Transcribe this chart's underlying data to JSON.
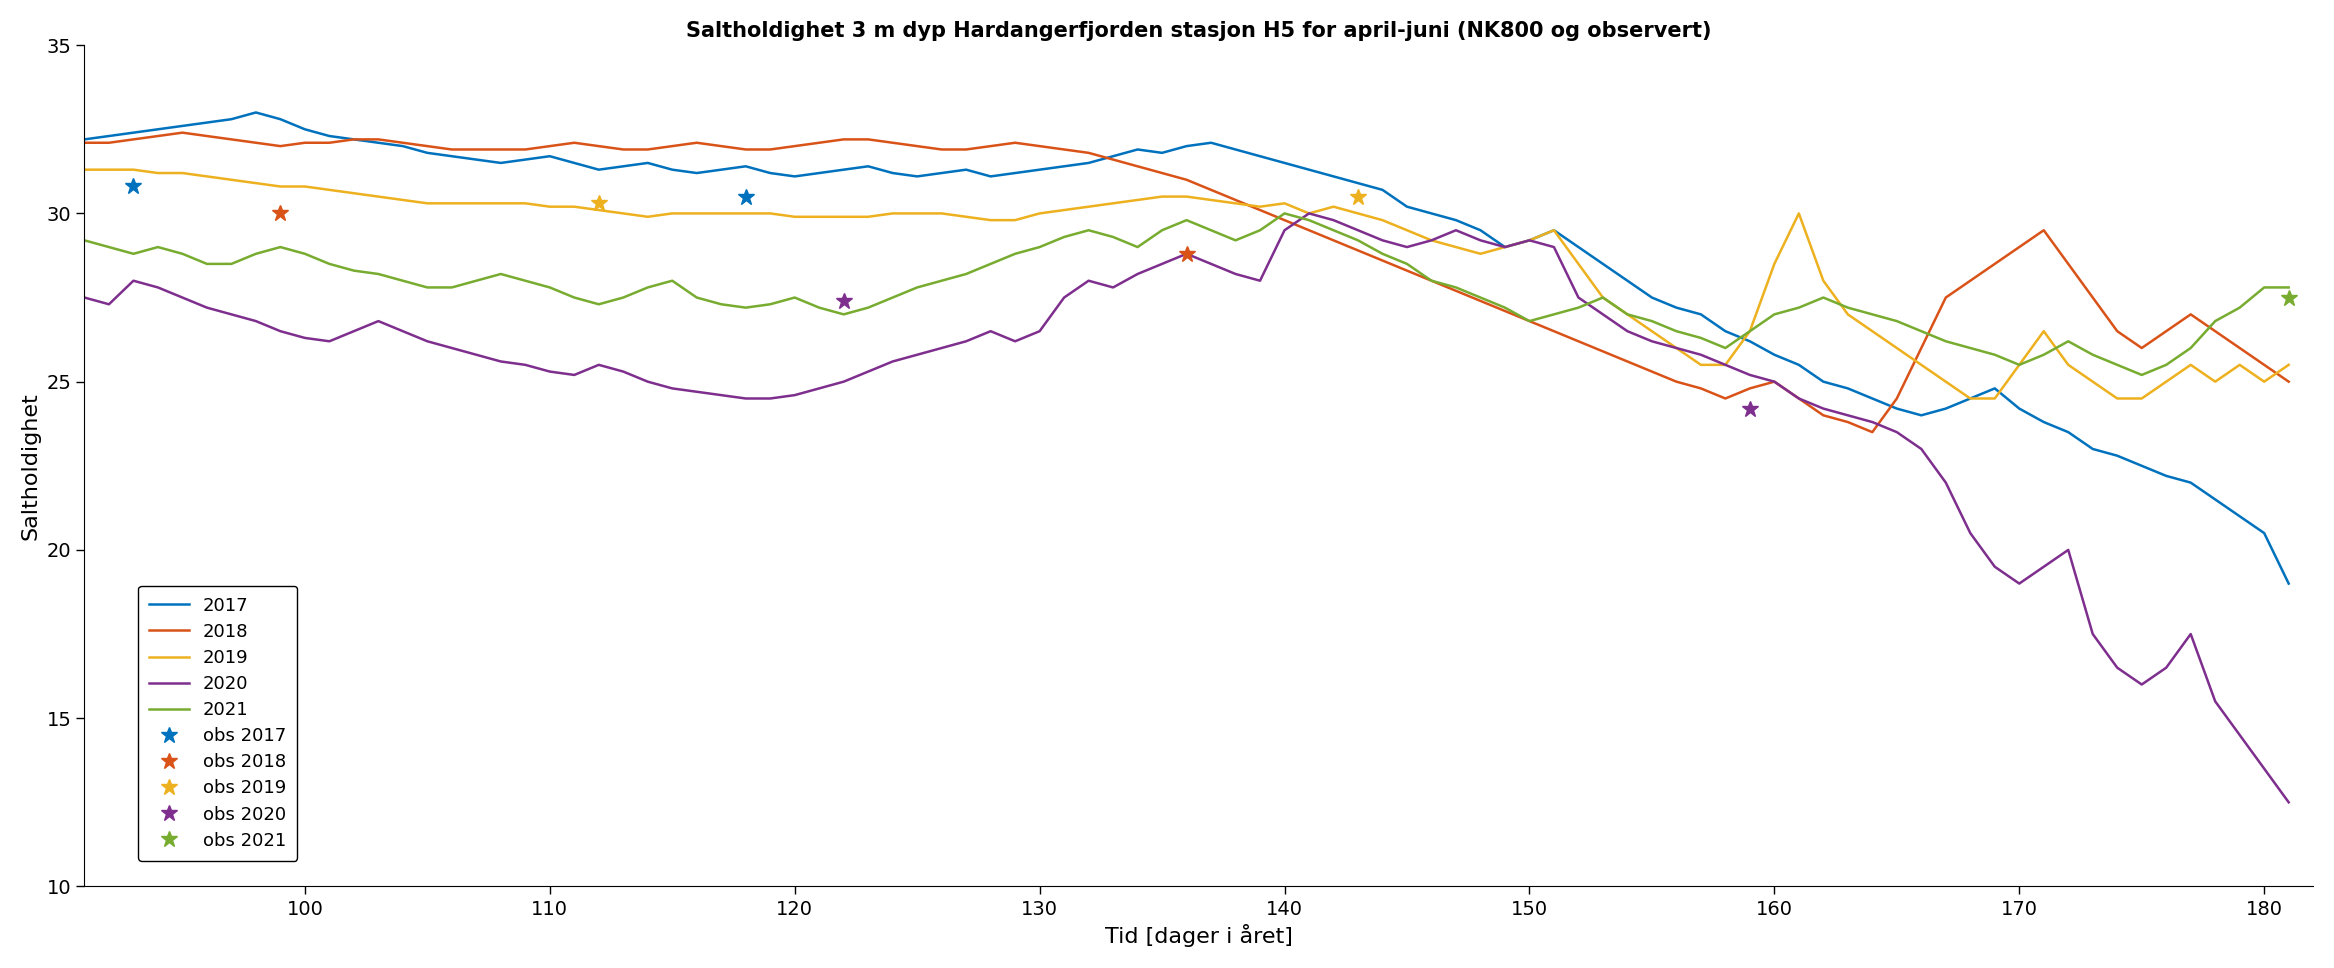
{
  "title": "Saltholdighet 3 m dyp Hardangerfjorden stasjon H5 for april-juni (NK800 og observert)",
  "xlabel": "Tid [dager i året]",
  "ylabel": "Saltholdighet",
  "xlim": [
    91,
    182
  ],
  "ylim": [
    10,
    35
  ],
  "yticks": [
    10,
    15,
    20,
    25,
    30,
    35
  ],
  "xticks": [
    100,
    110,
    120,
    130,
    140,
    150,
    160,
    170,
    180
  ],
  "background_color": "#ffffff",
  "lines": {
    "2017": {
      "color": "#0072BD",
      "x": [
        91,
        92,
        93,
        94,
        95,
        96,
        97,
        98,
        99,
        100,
        101,
        102,
        103,
        104,
        105,
        106,
        107,
        108,
        109,
        110,
        111,
        112,
        113,
        114,
        115,
        116,
        117,
        118,
        119,
        120,
        121,
        122,
        123,
        124,
        125,
        126,
        127,
        128,
        129,
        130,
        131,
        132,
        133,
        134,
        135,
        136,
        137,
        138,
        139,
        140,
        141,
        142,
        143,
        144,
        145,
        146,
        147,
        148,
        149,
        150,
        151,
        152,
        153,
        154,
        155,
        156,
        157,
        158,
        159,
        160,
        161,
        162,
        163,
        164,
        165,
        166,
        167,
        168,
        169,
        170,
        171,
        172,
        173,
        174,
        175,
        176,
        177,
        178,
        179,
        180,
        181
      ],
      "y": [
        32.2,
        32.3,
        32.4,
        32.5,
        32.6,
        32.7,
        32.8,
        33.0,
        32.8,
        32.5,
        32.3,
        32.2,
        32.1,
        32.0,
        31.8,
        31.7,
        31.6,
        31.5,
        31.6,
        31.7,
        31.5,
        31.3,
        31.4,
        31.5,
        31.3,
        31.2,
        31.3,
        31.4,
        31.2,
        31.1,
        31.2,
        31.3,
        31.4,
        31.2,
        31.1,
        31.2,
        31.3,
        31.1,
        31.2,
        31.3,
        31.4,
        31.5,
        31.7,
        31.9,
        31.8,
        32.0,
        32.1,
        31.9,
        31.7,
        31.5,
        31.3,
        31.1,
        30.9,
        30.7,
        30.2,
        30.0,
        29.8,
        29.5,
        29.0,
        29.2,
        29.5,
        29.0,
        28.5,
        28.0,
        27.5,
        27.2,
        27.0,
        26.5,
        26.2,
        25.8,
        25.5,
        25.0,
        24.8,
        24.5,
        24.2,
        24.0,
        24.2,
        24.5,
        24.8,
        24.2,
        23.8,
        23.5,
        23.0,
        22.8,
        22.5,
        22.2,
        22.0,
        21.5,
        21.0,
        20.5,
        19.0
      ]
    },
    "2018": {
      "color": "#D95319",
      "x": [
        91,
        92,
        93,
        94,
        95,
        96,
        97,
        98,
        99,
        100,
        101,
        102,
        103,
        104,
        105,
        106,
        107,
        108,
        109,
        110,
        111,
        112,
        113,
        114,
        115,
        116,
        117,
        118,
        119,
        120,
        121,
        122,
        123,
        124,
        125,
        126,
        127,
        128,
        129,
        130,
        131,
        132,
        133,
        134,
        135,
        136,
        137,
        138,
        139,
        140,
        141,
        142,
        143,
        144,
        145,
        146,
        147,
        148,
        149,
        150,
        151,
        152,
        153,
        154,
        155,
        156,
        157,
        158,
        159,
        160,
        161,
        162,
        163,
        164,
        165,
        166,
        167,
        168,
        169,
        170,
        171,
        172,
        173,
        174,
        175,
        176,
        177,
        178,
        179,
        180,
        181
      ],
      "y": [
        32.1,
        32.1,
        32.2,
        32.3,
        32.4,
        32.3,
        32.2,
        32.1,
        32.0,
        32.1,
        32.1,
        32.2,
        32.2,
        32.1,
        32.0,
        31.9,
        31.9,
        31.9,
        31.9,
        32.0,
        32.1,
        32.0,
        31.9,
        31.9,
        32.0,
        32.1,
        32.0,
        31.9,
        31.9,
        32.0,
        32.1,
        32.2,
        32.2,
        32.1,
        32.0,
        31.9,
        31.9,
        32.0,
        32.1,
        32.0,
        31.9,
        31.8,
        31.6,
        31.4,
        31.2,
        31.0,
        30.7,
        30.4,
        30.1,
        29.8,
        29.5,
        29.2,
        28.9,
        28.6,
        28.3,
        28.0,
        27.7,
        27.4,
        27.1,
        26.8,
        26.5,
        26.2,
        25.9,
        25.6,
        25.3,
        25.0,
        24.8,
        24.5,
        24.8,
        25.0,
        24.5,
        24.0,
        23.8,
        23.5,
        24.5,
        26.0,
        27.5,
        28.0,
        28.5,
        29.0,
        29.5,
        28.5,
        27.5,
        26.5,
        26.0,
        26.5,
        27.0,
        26.5,
        26.0,
        25.5,
        25.0
      ]
    },
    "2019": {
      "color": "#EDB120",
      "x": [
        91,
        92,
        93,
        94,
        95,
        96,
        97,
        98,
        99,
        100,
        101,
        102,
        103,
        104,
        105,
        106,
        107,
        108,
        109,
        110,
        111,
        112,
        113,
        114,
        115,
        116,
        117,
        118,
        119,
        120,
        121,
        122,
        123,
        124,
        125,
        126,
        127,
        128,
        129,
        130,
        131,
        132,
        133,
        134,
        135,
        136,
        137,
        138,
        139,
        140,
        141,
        142,
        143,
        144,
        145,
        146,
        147,
        148,
        149,
        150,
        151,
        152,
        153,
        154,
        155,
        156,
        157,
        158,
        159,
        160,
        161,
        162,
        163,
        164,
        165,
        166,
        167,
        168,
        169,
        170,
        171,
        172,
        173,
        174,
        175,
        176,
        177,
        178,
        179,
        180,
        181
      ],
      "y": [
        31.3,
        31.3,
        31.3,
        31.2,
        31.2,
        31.1,
        31.0,
        30.9,
        30.8,
        30.8,
        30.7,
        30.6,
        30.5,
        30.4,
        30.3,
        30.3,
        30.3,
        30.3,
        30.3,
        30.2,
        30.2,
        30.1,
        30.0,
        29.9,
        30.0,
        30.0,
        30.0,
        30.0,
        30.0,
        29.9,
        29.9,
        29.9,
        29.9,
        30.0,
        30.0,
        30.0,
        29.9,
        29.8,
        29.8,
        30.0,
        30.1,
        30.2,
        30.3,
        30.4,
        30.5,
        30.5,
        30.4,
        30.3,
        30.2,
        30.3,
        30.0,
        30.2,
        30.0,
        29.8,
        29.5,
        29.2,
        29.0,
        28.8,
        29.0,
        29.2,
        29.5,
        28.5,
        27.5,
        27.0,
        26.5,
        26.0,
        25.5,
        25.5,
        26.5,
        28.5,
        30.0,
        28.0,
        27.0,
        26.5,
        26.0,
        25.5,
        25.0,
        24.5,
        24.5,
        25.5,
        26.5,
        25.5,
        25.0,
        24.5,
        24.5,
        25.0,
        25.5,
        25.0,
        25.5,
        25.0,
        25.5
      ]
    },
    "2020": {
      "color": "#7E2F8E",
      "x": [
        91,
        92,
        93,
        94,
        95,
        96,
        97,
        98,
        99,
        100,
        101,
        102,
        103,
        104,
        105,
        106,
        107,
        108,
        109,
        110,
        111,
        112,
        113,
        114,
        115,
        116,
        117,
        118,
        119,
        120,
        121,
        122,
        123,
        124,
        125,
        126,
        127,
        128,
        129,
        130,
        131,
        132,
        133,
        134,
        135,
        136,
        137,
        138,
        139,
        140,
        141,
        142,
        143,
        144,
        145,
        146,
        147,
        148,
        149,
        150,
        151,
        152,
        153,
        154,
        155,
        156,
        157,
        158,
        159,
        160,
        161,
        162,
        163,
        164,
        165,
        166,
        167,
        168,
        169,
        170,
        171,
        172,
        173,
        174,
        175,
        176,
        177,
        178,
        179,
        180,
        181
      ],
      "y": [
        27.5,
        27.3,
        28.0,
        27.8,
        27.5,
        27.2,
        27.0,
        26.8,
        26.5,
        26.3,
        26.2,
        26.5,
        26.8,
        26.5,
        26.2,
        26.0,
        25.8,
        25.6,
        25.5,
        25.3,
        25.2,
        25.5,
        25.3,
        25.0,
        24.8,
        24.7,
        24.6,
        24.5,
        24.5,
        24.6,
        24.8,
        25.0,
        25.3,
        25.6,
        25.8,
        26.0,
        26.2,
        26.5,
        26.2,
        26.5,
        27.5,
        28.0,
        27.8,
        28.2,
        28.5,
        28.8,
        28.5,
        28.2,
        28.0,
        29.5,
        30.0,
        29.8,
        29.5,
        29.2,
        29.0,
        29.2,
        29.5,
        29.2,
        29.0,
        29.2,
        29.0,
        27.5,
        27.0,
        26.5,
        26.2,
        26.0,
        25.8,
        25.5,
        25.2,
        25.0,
        24.5,
        24.2,
        24.0,
        23.8,
        23.5,
        23.0,
        22.0,
        20.5,
        19.5,
        19.0,
        19.5,
        20.0,
        17.5,
        16.5,
        16.0,
        16.5,
        17.5,
        15.5,
        14.5,
        13.5,
        12.5
      ]
    },
    "2021": {
      "color": "#77AC30",
      "x": [
        91,
        92,
        93,
        94,
        95,
        96,
        97,
        98,
        99,
        100,
        101,
        102,
        103,
        104,
        105,
        106,
        107,
        108,
        109,
        110,
        111,
        112,
        113,
        114,
        115,
        116,
        117,
        118,
        119,
        120,
        121,
        122,
        123,
        124,
        125,
        126,
        127,
        128,
        129,
        130,
        131,
        132,
        133,
        134,
        135,
        136,
        137,
        138,
        139,
        140,
        141,
        142,
        143,
        144,
        145,
        146,
        147,
        148,
        149,
        150,
        151,
        152,
        153,
        154,
        155,
        156,
        157,
        158,
        159,
        160,
        161,
        162,
        163,
        164,
        165,
        166,
        167,
        168,
        169,
        170,
        171,
        172,
        173,
        174,
        175,
        176,
        177,
        178,
        179,
        180,
        181
      ],
      "y": [
        29.2,
        29.0,
        28.8,
        29.0,
        28.8,
        28.5,
        28.5,
        28.8,
        29.0,
        28.8,
        28.5,
        28.3,
        28.2,
        28.0,
        27.8,
        27.8,
        28.0,
        28.2,
        28.0,
        27.8,
        27.5,
        27.3,
        27.5,
        27.8,
        28.0,
        27.5,
        27.3,
        27.2,
        27.3,
        27.5,
        27.2,
        27.0,
        27.2,
        27.5,
        27.8,
        28.0,
        28.2,
        28.5,
        28.8,
        29.0,
        29.3,
        29.5,
        29.3,
        29.0,
        29.5,
        29.8,
        29.5,
        29.2,
        29.5,
        30.0,
        29.8,
        29.5,
        29.2,
        28.8,
        28.5,
        28.0,
        27.8,
        27.5,
        27.2,
        26.8,
        27.0,
        27.2,
        27.5,
        27.0,
        26.8,
        26.5,
        26.3,
        26.0,
        26.5,
        27.0,
        27.2,
        27.5,
        27.2,
        27.0,
        26.8,
        26.5,
        26.2,
        26.0,
        25.8,
        25.5,
        25.8,
        26.2,
        25.8,
        25.5,
        25.2,
        25.5,
        26.0,
        26.8,
        27.2,
        27.8,
        27.8
      ]
    }
  },
  "obs_points": {
    "obs 2017": {
      "color": "#0072BD",
      "x": [
        93,
        118
      ],
      "y": [
        30.8,
        30.5
      ]
    },
    "obs 2018": {
      "color": "#D95319",
      "x": [
        99,
        136
      ],
      "y": [
        30.0,
        28.8
      ]
    },
    "obs 2019": {
      "color": "#EDB120",
      "x": [
        112,
        143
      ],
      "y": [
        30.3,
        30.5
      ]
    },
    "obs 2020": {
      "color": "#7E2F8E",
      "x": [
        122,
        159
      ],
      "y": [
        27.4,
        24.2
      ]
    },
    "obs 2021": {
      "color": "#77AC30",
      "x": [
        181
      ],
      "y": [
        27.5
      ]
    }
  }
}
